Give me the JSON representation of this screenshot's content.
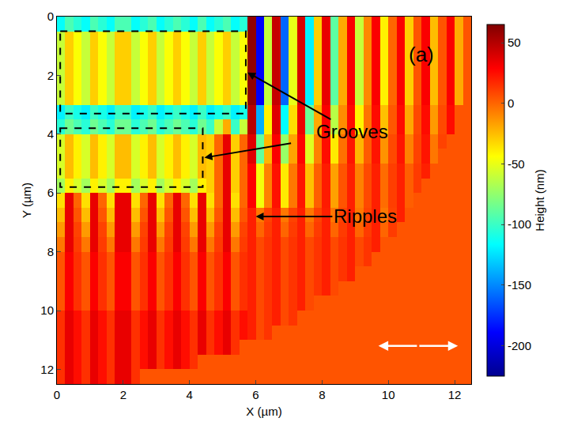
{
  "chart_data": {
    "type": "heatmap",
    "xlabel": "X (µm)",
    "ylabel": "Y (µm)",
    "colorbar_label": "Height (nm)",
    "annotations": [
      "(a)",
      "Grooves",
      "Ripples"
    ],
    "xlim": [
      0,
      12.5
    ],
    "ylim": [
      12.5,
      0
    ],
    "xticks": [
      0,
      2,
      4,
      6,
      8,
      10,
      12
    ],
    "yticks": [
      0,
      2,
      4,
      6,
      8,
      10,
      12
    ],
    "zlim": [
      -225,
      65
    ],
    "zticks": [
      50,
      0,
      -50,
      -100,
      -150,
      -200
    ],
    "x": [
      0.125,
      0.375,
      0.625,
      0.875,
      1.125,
      1.375,
      1.625,
      1.875,
      2.125,
      2.375,
      2.625,
      2.875,
      3.125,
      3.375,
      3.625,
      3.875,
      4.125,
      4.375,
      4.625,
      4.875,
      5.125,
      5.375,
      5.625,
      5.875,
      6.125,
      6.375,
      6.625,
      6.875,
      7.125,
      7.375,
      7.625,
      7.875,
      8.125,
      8.375,
      8.625,
      8.875,
      9.125,
      9.375,
      9.625,
      9.875,
      10.125,
      10.375,
      10.625,
      10.875,
      11.125,
      11.375,
      11.625,
      11.875,
      12.125,
      12.375
    ],
    "y": [
      0.25,
      0.75,
      1.25,
      1.75,
      2.25,
      2.75,
      3.25,
      3.75,
      4.25,
      4.75,
      5.25,
      5.75,
      6.25,
      6.75,
      7.25,
      7.75,
      8.25,
      8.75,
      9.25,
      9.75,
      10.25,
      10.75,
      11.25,
      11.75,
      12.25
    ],
    "z": [
      [
        -115,
        -95,
        -105,
        -115,
        -95,
        -105,
        -115,
        -95,
        -95,
        -115,
        -105,
        -95,
        -115,
        -105,
        -95,
        -105,
        -115,
        -95,
        -115,
        -105,
        -95,
        -115,
        -105,
        60,
        -190,
        -60,
        45,
        -160,
        -50,
        40,
        -120,
        -30,
        35,
        -90,
        -20,
        30,
        -60,
        -10,
        30,
        -40,
        0,
        30,
        -30,
        5,
        30,
        -25,
        5,
        30,
        -20,
        5
      ],
      [
        -60,
        -30,
        -45,
        -60,
        -30,
        -45,
        -60,
        -30,
        -30,
        -60,
        -45,
        -30,
        -60,
        -45,
        -30,
        -45,
        -60,
        -30,
        -60,
        -45,
        -30,
        -60,
        -45,
        60,
        -190,
        -60,
        45,
        -160,
        -50,
        40,
        -120,
        -30,
        35,
        -90,
        -20,
        30,
        -60,
        -10,
        30,
        -40,
        0,
        30,
        -30,
        5,
        30,
        -25,
        5,
        30,
        -20,
        5
      ],
      [
        -60,
        -30,
        -45,
        -60,
        -30,
        -45,
        -60,
        -30,
        -30,
        -60,
        -45,
        -30,
        -60,
        -45,
        -30,
        -45,
        -60,
        -30,
        -60,
        -45,
        -30,
        -60,
        -45,
        60,
        -190,
        -60,
        45,
        -160,
        -50,
        40,
        -120,
        -30,
        35,
        -90,
        -20,
        30,
        -60,
        -10,
        30,
        -40,
        0,
        30,
        -30,
        5,
        30,
        -25,
        5,
        30,
        -20,
        5
      ],
      [
        -60,
        -30,
        -45,
        -60,
        -30,
        -45,
        -60,
        -30,
        -30,
        -60,
        -45,
        -30,
        -60,
        -45,
        -30,
        -45,
        -60,
        -30,
        -60,
        -45,
        -30,
        -60,
        -45,
        60,
        -190,
        -60,
        45,
        -160,
        -50,
        40,
        -120,
        -30,
        35,
        -90,
        -20,
        30,
        -60,
        -10,
        30,
        -40,
        0,
        30,
        -30,
        5,
        30,
        -25,
        5,
        30,
        -20,
        5
      ],
      [
        -60,
        -30,
        -45,
        -60,
        -30,
        -45,
        -60,
        -30,
        -30,
        -60,
        -45,
        -30,
        -60,
        -45,
        -30,
        -45,
        -60,
        -30,
        -60,
        -45,
        -30,
        -60,
        -45,
        60,
        -190,
        -60,
        45,
        -160,
        -50,
        40,
        -120,
        -30,
        35,
        -90,
        -20,
        30,
        -60,
        -10,
        30,
        -40,
        0,
        30,
        -30,
        5,
        30,
        -25,
        5,
        30,
        -20,
        5
      ],
      [
        -60,
        -30,
        -45,
        -60,
        -30,
        -45,
        -60,
        -30,
        -30,
        -60,
        -45,
        -30,
        -60,
        -45,
        -30,
        -45,
        -60,
        -30,
        -60,
        -45,
        -30,
        -60,
        -45,
        60,
        -190,
        -60,
        45,
        -160,
        -50,
        40,
        -120,
        -30,
        35,
        -90,
        -20,
        30,
        -60,
        -10,
        30,
        -40,
        0,
        30,
        -30,
        5,
        30,
        -25,
        5,
        30,
        -20,
        5
      ],
      [
        -120,
        -100,
        -110,
        -120,
        -100,
        -110,
        -120,
        -100,
        -100,
        -120,
        -110,
        -100,
        -120,
        -110,
        -100,
        -110,
        -120,
        -100,
        -120,
        -110,
        -100,
        -120,
        -110,
        49,
        -139,
        -41,
        38,
        -116,
        -34,
        34,
        -86,
        -19,
        30,
        -64,
        -11,
        26,
        -41,
        -4,
        26,
        -26,
        4,
        26,
        -19,
        8,
        26,
        -15,
        8,
        26,
        5,
        5
      ],
      [
        -105,
        -85,
        -95,
        -105,
        -85,
        -95,
        -105,
        -85,
        -85,
        -105,
        -95,
        -85,
        -105,
        -95,
        -85,
        -95,
        -105,
        -85,
        -100,
        -60,
        -20,
        -100,
        -60,
        49,
        -139,
        -41,
        38,
        -116,
        -34,
        34,
        -86,
        -19,
        30,
        -64,
        -11,
        26,
        -41,
        -4,
        26,
        -26,
        4,
        26,
        -19,
        8,
        26,
        -15,
        8,
        26,
        5,
        5
      ],
      [
        -55,
        -25,
        -40,
        -55,
        -25,
        -40,
        -55,
        -25,
        -25,
        -55,
        -40,
        -25,
        -55,
        -40,
        -25,
        -40,
        -55,
        -25,
        -30,
        0,
        35,
        -30,
        0,
        38,
        -88,
        -23,
        30,
        -73,
        -18,
        28,
        -53,
        -8,
        25,
        -38,
        -3,
        23,
        -23,
        3,
        23,
        -13,
        8,
        23,
        -8,
        10,
        23,
        -5,
        10,
        5,
        5,
        5
      ],
      [
        -55,
        -25,
        -40,
        -55,
        -25,
        -40,
        -55,
        -25,
        -25,
        -55,
        -40,
        -25,
        -55,
        -40,
        -25,
        -40,
        -55,
        -25,
        -30,
        0,
        35,
        -30,
        0,
        38,
        -88,
        -23,
        30,
        -73,
        -18,
        28,
        -53,
        -8,
        25,
        -38,
        -3,
        23,
        -23,
        3,
        23,
        -13,
        8,
        23,
        -8,
        10,
        23,
        -5,
        5,
        5,
        5,
        5
      ],
      [
        -55,
        -25,
        -40,
        -55,
        -25,
        -40,
        -55,
        -25,
        -25,
        -55,
        -40,
        -25,
        -55,
        -40,
        -25,
        -40,
        -55,
        -25,
        -30,
        0,
        35,
        -30,
        0,
        29,
        -47,
        -8,
        24,
        -38,
        -5,
        23,
        -26,
        2,
        21,
        -17,
        5,
        20,
        -8,
        8,
        20,
        -2,
        11,
        20,
        2,
        12,
        20,
        5,
        5,
        5,
        5,
        5
      ],
      [
        -70,
        -40,
        -55,
        -70,
        -40,
        -55,
        -70,
        -40,
        -40,
        -70,
        -55,
        -40,
        -70,
        -55,
        -40,
        -55,
        -70,
        -40,
        -30,
        0,
        35,
        -30,
        0,
        29,
        -47,
        -8,
        24,
        -38,
        -5,
        23,
        -26,
        2,
        21,
        -17,
        5,
        20,
        -8,
        8,
        20,
        -2,
        11,
        20,
        2,
        12,
        5,
        5,
        5,
        5,
        5,
        5
      ],
      [
        -35,
        35,
        0,
        -35,
        35,
        0,
        -35,
        35,
        35,
        -35,
        0,
        35,
        -35,
        0,
        35,
        0,
        -35,
        35,
        -35,
        0,
        35,
        -35,
        0,
        29,
        -47,
        -8,
        24,
        -38,
        -5,
        23,
        -26,
        2,
        21,
        -17,
        5,
        20,
        -8,
        8,
        20,
        -2,
        11,
        20,
        2,
        5,
        5,
        5,
        5,
        5,
        5,
        5
      ],
      [
        -25,
        35,
        5,
        -25,
        35,
        5,
        -25,
        35,
        35,
        -25,
        5,
        35,
        -25,
        5,
        35,
        5,
        -25,
        35,
        -25,
        5,
        35,
        -25,
        5,
        20,
        -5,
        10,
        20,
        -5,
        10,
        20,
        -5,
        10,
        20,
        -5,
        10,
        20,
        -5,
        10,
        20,
        -5,
        10,
        20,
        5,
        5,
        5,
        5,
        5,
        5,
        5,
        5
      ],
      [
        -15,
        35,
        10,
        -15,
        35,
        10,
        -15,
        35,
        35,
        -15,
        10,
        35,
        -15,
        10,
        35,
        10,
        -15,
        35,
        -15,
        10,
        35,
        -15,
        10,
        20,
        0,
        12,
        20,
        0,
        12,
        20,
        0,
        12,
        20,
        0,
        12,
        20,
        0,
        12,
        20,
        0,
        12,
        5,
        5,
        5,
        5,
        5,
        5,
        5,
        5,
        5
      ],
      [
        -5,
        35,
        12,
        -5,
        35,
        12,
        -5,
        35,
        35,
        -5,
        12,
        35,
        -5,
        12,
        35,
        12,
        -5,
        35,
        -5,
        12,
        35,
        -5,
        12,
        20,
        8,
        14,
        20,
        8,
        14,
        20,
        8,
        14,
        20,
        8,
        14,
        20,
        8,
        14,
        20,
        5,
        5,
        5,
        5,
        5,
        5,
        5,
        5,
        5,
        5,
        5
      ],
      [
        5,
        30,
        15,
        5,
        30,
        15,
        5,
        30,
        30,
        5,
        15,
        30,
        5,
        15,
        30,
        15,
        5,
        30,
        5,
        15,
        30,
        5,
        15,
        20,
        8,
        14,
        20,
        8,
        14,
        20,
        8,
        14,
        20,
        8,
        14,
        20,
        8,
        14,
        5,
        5,
        5,
        5,
        5,
        5,
        5,
        5,
        5,
        5,
        5,
        5
      ],
      [
        5,
        30,
        15,
        5,
        30,
        15,
        5,
        30,
        30,
        5,
        15,
        30,
        5,
        15,
        30,
        15,
        5,
        30,
        5,
        15,
        30,
        5,
        15,
        20,
        8,
        14,
        20,
        8,
        14,
        20,
        8,
        14,
        20,
        8,
        14,
        20,
        5,
        5,
        5,
        5,
        5,
        5,
        5,
        5,
        5,
        5,
        5,
        5,
        5,
        5
      ],
      [
        5,
        30,
        15,
        5,
        30,
        15,
        5,
        30,
        30,
        5,
        15,
        30,
        5,
        15,
        30,
        15,
        5,
        30,
        5,
        15,
        30,
        5,
        15,
        20,
        8,
        14,
        20,
        8,
        14,
        20,
        8,
        14,
        20,
        8,
        5,
        5,
        5,
        5,
        5,
        5,
        5,
        5,
        5,
        5,
        5,
        5,
        5,
        5,
        5,
        5
      ],
      [
        5,
        30,
        15,
        5,
        30,
        15,
        5,
        30,
        30,
        5,
        15,
        30,
        5,
        15,
        30,
        15,
        5,
        30,
        5,
        15,
        30,
        5,
        15,
        20,
        8,
        14,
        20,
        8,
        14,
        20,
        8,
        5,
        5,
        5,
        5,
        5,
        5,
        5,
        5,
        5,
        5,
        5,
        5,
        5,
        5,
        5,
        5,
        5,
        5,
        5
      ],
      [
        15,
        35,
        25,
        15,
        35,
        25,
        15,
        35,
        35,
        15,
        25,
        35,
        15,
        25,
        35,
        25,
        15,
        35,
        15,
        25,
        35,
        15,
        25,
        20,
        8,
        14,
        20,
        8,
        14,
        5,
        5,
        5,
        5,
        5,
        5,
        5,
        5,
        5,
        5,
        5,
        5,
        5,
        5,
        5,
        5,
        5,
        5,
        5,
        5,
        5
      ],
      [
        15,
        35,
        25,
        15,
        35,
        25,
        15,
        35,
        35,
        15,
        25,
        35,
        15,
        25,
        35,
        25,
        15,
        35,
        15,
        25,
        35,
        15,
        25,
        20,
        8,
        14,
        5,
        5,
        5,
        5,
        5,
        5,
        5,
        5,
        5,
        5,
        5,
        5,
        5,
        5,
        5,
        5,
        5,
        5,
        5,
        5,
        5,
        5,
        5,
        5
      ],
      [
        15,
        35,
        25,
        15,
        35,
        25,
        15,
        35,
        35,
        15,
        25,
        35,
        15,
        25,
        35,
        25,
        15,
        35,
        15,
        25,
        35,
        15,
        5,
        5,
        5,
        5,
        5,
        5,
        5,
        5,
        5,
        5,
        5,
        5,
        5,
        5,
        5,
        5,
        5,
        5,
        5,
        5,
        5,
        5,
        5,
        5,
        5,
        5,
        5,
        5
      ],
      [
        15,
        35,
        25,
        15,
        35,
        25,
        15,
        35,
        35,
        15,
        25,
        35,
        15,
        25,
        35,
        25,
        15,
        5,
        5,
        5,
        5,
        5,
        5,
        5,
        5,
        5,
        5,
        5,
        5,
        5,
        5,
        5,
        5,
        5,
        5,
        5,
        5,
        5,
        5,
        5,
        5,
        5,
        5,
        5,
        5,
        5,
        5,
        5,
        5,
        5
      ],
      [
        15,
        35,
        25,
        15,
        35,
        25,
        15,
        35,
        35,
        15,
        5,
        5,
        5,
        5,
        5,
        5,
        5,
        5,
        5,
        5,
        5,
        5,
        5,
        5,
        5,
        5,
        5,
        5,
        5,
        5,
        5,
        5,
        5,
        5,
        5,
        5,
        5,
        5,
        5,
        5,
        5,
        5,
        5,
        5,
        5,
        5,
        5,
        5,
        5,
        5
      ]
    ]
  }
}
